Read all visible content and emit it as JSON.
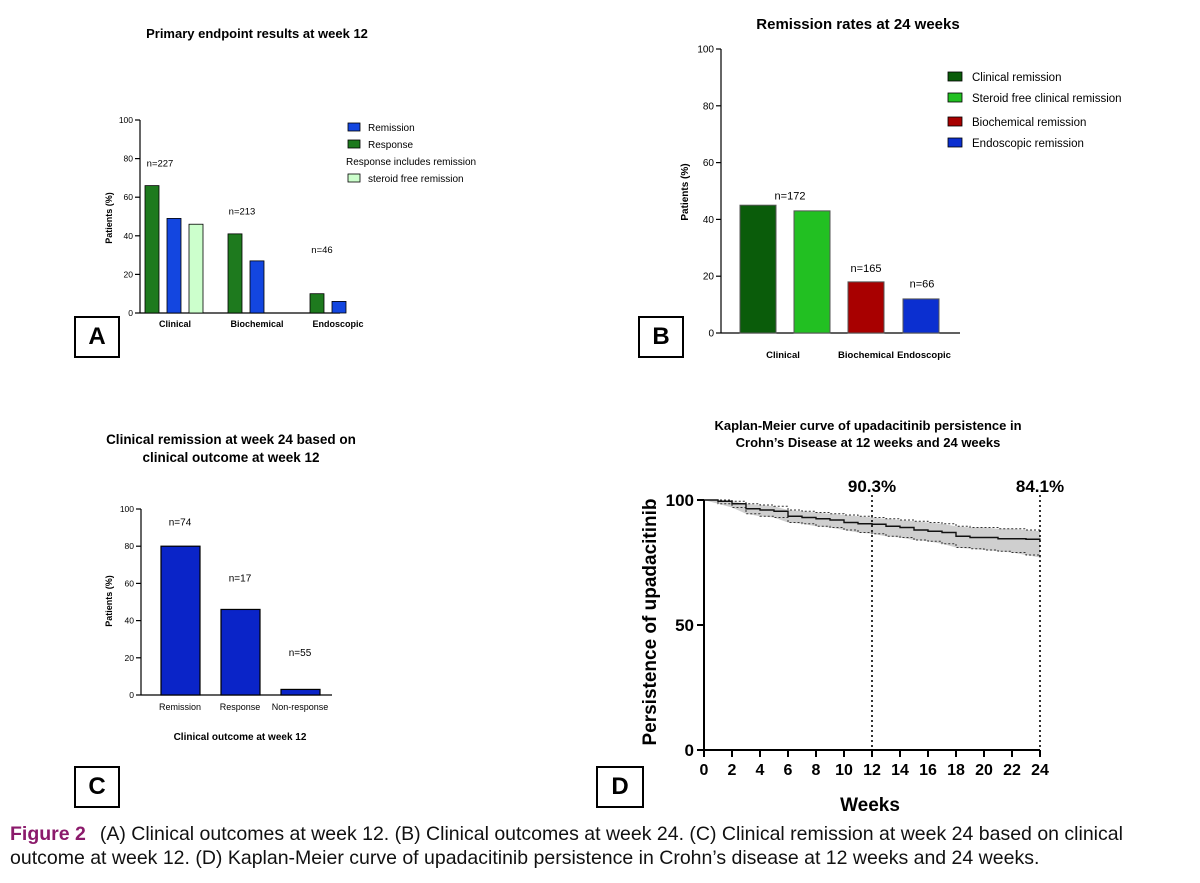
{
  "figure": {
    "caption_label": "Figure 2",
    "caption_text": "(A) Clinical outcomes at week 12. (B) Clinical outcomes at week 24. (C) Clinical remission at week 24 based on clinical outcome at week 12. (D) Kaplan-Meier curve of upadacitinib persistence in Crohn’s disease at 12 weeks and 24 weeks."
  },
  "panel_letters": {
    "a": "A",
    "b": "B",
    "c": "C",
    "d": "D"
  },
  "legend_colors": {
    "dark_green": "#1e7a1e",
    "blue": "#1346e0",
    "light_green": "#ccffcc",
    "b_dark_green": "#0a5c0a",
    "b_green": "#22c022",
    "b_red": "#a80000",
    "b_blue": "#0b2fd0",
    "c_blue": "#0a24c8"
  },
  "chart_data": [
    {
      "id": "A",
      "type": "bar",
      "title": "Primary endpoint results at week 12",
      "ylabel": "Patients (%)",
      "ylim": [
        0,
        100
      ],
      "yticks": [
        "0",
        "20",
        "40",
        "60",
        "80",
        "100"
      ],
      "categories": [
        "Clinical",
        "Biochemical",
        "Endoscopic"
      ],
      "series": [
        {
          "name": "Response",
          "values": [
            66,
            41,
            10
          ]
        },
        {
          "name": "Remission",
          "values": [
            49,
            27,
            6
          ]
        },
        {
          "name": "steroid free remission",
          "values": [
            46,
            null,
            null
          ]
        }
      ],
      "annotations": [
        "n=227",
        "n=213",
        "n=46"
      ],
      "legend_note": "Response includes remission",
      "legend": "top-right"
    },
    {
      "id": "B",
      "type": "bar",
      "title": "Remission rates at 24 weeks",
      "ylabel": "Patients (%)",
      "ylim": [
        0,
        100
      ],
      "yticks": [
        "0",
        "20",
        "40",
        "60",
        "80",
        "100"
      ],
      "categories": [
        "Clinical",
        "Biochemical",
        "Endoscopic"
      ],
      "series": [
        {
          "name": "Clinical remission",
          "values": [
            45,
            null,
            null
          ]
        },
        {
          "name": "Steroid free clinical remission",
          "values": [
            43,
            null,
            null
          ]
        },
        {
          "name": "Biochemical remission",
          "values": [
            null,
            18,
            null
          ]
        },
        {
          "name": "Endoscopic remission",
          "values": [
            null,
            null,
            12
          ]
        }
      ],
      "annotations": [
        "n=172",
        "n=165",
        "n=66"
      ],
      "legend": "top-right"
    },
    {
      "id": "C",
      "type": "bar",
      "title": "Clinical remission at week 24  based on clinical outcome at week 12",
      "title_lines": [
        "Clinical remission at week 24  based on",
        "clinical outcome at week 12"
      ],
      "xlabel": "Clinical outcome at week 12",
      "ylabel": "Patients (%)",
      "ylim": [
        0,
        100
      ],
      "yticks": [
        "0",
        "20",
        "40",
        "60",
        "80",
        "100"
      ],
      "categories": [
        "Remission",
        "Response",
        "Non-response"
      ],
      "values": [
        80,
        46,
        3
      ],
      "annotations": [
        "n=74",
        "n=17",
        "n=55"
      ]
    },
    {
      "id": "D",
      "type": "line",
      "title": "Kaplan-Meier curve of upadacitinib persistence in Crohn’s Disease at 12 weeks and 24 weeks",
      "title_lines": [
        "Kaplan-Meier curve of upadacitinib persistence in",
        "Crohn’s Disease at 12 weeks and 24 weeks"
      ],
      "xlabel": "Weeks",
      "ylabel": "Persistence of upadacitinib",
      "xlim": [
        0,
        24
      ],
      "ylim": [
        0,
        100
      ],
      "xticks": [
        "0",
        "2",
        "4",
        "6",
        "8",
        "10",
        "12",
        "14",
        "16",
        "18",
        "20",
        "22",
        "24"
      ],
      "yticks": [
        "0",
        "50",
        "100"
      ],
      "x": [
        0,
        1,
        2,
        3,
        4,
        5,
        6,
        7,
        8,
        9,
        10,
        11,
        12,
        13,
        14,
        15,
        16,
        17,
        18,
        19,
        20,
        21,
        22,
        23,
        24
      ],
      "series": [
        {
          "name": "Persistence",
          "values": [
            100,
            99.5,
            98.5,
            96.5,
            96,
            95.5,
            93.5,
            93,
            92.5,
            92,
            91,
            90.5,
            90.3,
            89.5,
            89,
            88,
            87.5,
            87,
            85.5,
            85,
            85,
            84.5,
            84.5,
            84.3,
            84.1
          ]
        },
        {
          "name": "Upper CI",
          "values": [
            100,
            100,
            99.5,
            98.5,
            98,
            97.5,
            96,
            95.5,
            95,
            94.5,
            94,
            93.5,
            93,
            92.5,
            92,
            91.5,
            91,
            90.5,
            89.5,
            89,
            89,
            88.5,
            88.5,
            88,
            87.5
          ]
        },
        {
          "name": "Lower CI",
          "values": [
            100,
            98.5,
            97,
            94.5,
            93.5,
            93,
            91,
            90.5,
            89.5,
            89,
            88,
            87,
            86.5,
            85.5,
            85,
            84,
            83.5,
            82.5,
            81,
            80.5,
            80,
            79.5,
            79,
            78,
            77
          ]
        }
      ],
      "annotations": [
        {
          "x": 12,
          "label": "90.3%"
        },
        {
          "x": 24,
          "label": "84.1%"
        }
      ]
    }
  ]
}
